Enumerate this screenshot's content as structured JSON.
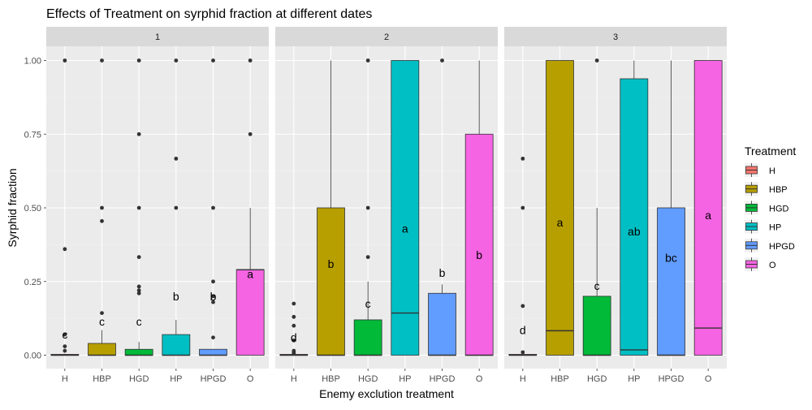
{
  "chart_data": {
    "type": "boxplot",
    "title": "Effects of Treatment on syrphid fraction at different dates",
    "xlabel": "Enemy exclution treatment",
    "ylabel": "Syrphid fraction",
    "ylim": [
      0,
      1
    ],
    "yticks": [
      "0.00",
      "0.25",
      "0.50",
      "0.75",
      "1.00"
    ],
    "categories": [
      "H",
      "HBP",
      "HGD",
      "HP",
      "HPGD",
      "O"
    ],
    "legend": {
      "title": "Treatment",
      "position": "right",
      "entries": [
        {
          "label": "H",
          "color": "#F8766D"
        },
        {
          "label": "HBP",
          "color": "#B79F00"
        },
        {
          "label": "HGD",
          "color": "#00BA38"
        },
        {
          "label": "HP",
          "color": "#00BFC4"
        },
        {
          "label": "HPGD",
          "color": "#619CFF"
        },
        {
          "label": "O",
          "color": "#F564E3"
        }
      ]
    },
    "panels": [
      {
        "strip": "1",
        "boxes": [
          {
            "cat": "H",
            "q1": 0,
            "median": 0,
            "q3": 0.003,
            "wlo": 0,
            "whi": 0.005,
            "outliers": [
              1.0,
              0.36,
              0.07,
              0.03,
              0.015
            ],
            "letter": "c",
            "letter_y": 0.07
          },
          {
            "cat": "HBP",
            "q1": 0,
            "median": 0,
            "q3": 0.04,
            "wlo": 0,
            "whi": 0.085,
            "outliers": [
              1.0,
              0.5,
              0.455,
              0.143
            ],
            "letter": "c",
            "letter_y": 0.115
          },
          {
            "cat": "HGD",
            "q1": 0,
            "median": 0,
            "q3": 0.02,
            "wlo": 0,
            "whi": 0.045,
            "outliers": [
              1.0,
              0.75,
              0.5,
              0.333,
              0.233,
              0.22,
              0.21
            ],
            "letter": "c",
            "letter_y": 0.115
          },
          {
            "cat": "HP",
            "q1": 0,
            "median": 0,
            "q3": 0.07,
            "wlo": 0,
            "whi": 0.12,
            "outliers": [
              1.0,
              0.667,
              0.5
            ],
            "letter": "b",
            "letter_y": 0.2
          },
          {
            "cat": "HPGD",
            "q1": 0,
            "median": 0,
            "q3": 0.02,
            "wlo": 0,
            "whi": 0.02,
            "outliers": [
              1.0,
              0.5,
              0.25,
              0.2,
              0.18,
              0.06
            ],
            "letter": "b",
            "letter_y": 0.2
          },
          {
            "cat": "O",
            "q1": 0,
            "median": 0.29,
            "q3": 0.29,
            "wlo": 0,
            "whi": 0.5,
            "outliers": [
              1.0,
              0.75
            ],
            "letter": "a",
            "letter_y": 0.275
          }
        ]
      },
      {
        "strip": "2",
        "boxes": [
          {
            "cat": "H",
            "q1": 0,
            "median": 0,
            "q3": 0.003,
            "wlo": 0,
            "whi": 0.005,
            "outliers": [
              0.175,
              0.13,
              0.1,
              0.05,
              0.015,
              0.01,
              0.005
            ],
            "letter": "d",
            "letter_y": 0.06
          },
          {
            "cat": "HBP",
            "q1": 0,
            "median": 0,
            "q3": 0.5,
            "wlo": 0,
            "whi": 1.0,
            "outliers": [],
            "letter": "b",
            "letter_y": 0.31
          },
          {
            "cat": "HGD",
            "q1": 0,
            "median": 0,
            "q3": 0.12,
            "wlo": 0,
            "whi": 0.25,
            "outliers": [
              1.0,
              0.5,
              0.333
            ],
            "letter": "c",
            "letter_y": 0.175
          },
          {
            "cat": "HP",
            "q1": 0,
            "median": 0.143,
            "q3": 1.0,
            "wlo": 0,
            "whi": 1.0,
            "outliers": [],
            "letter": "a",
            "letter_y": 0.43
          },
          {
            "cat": "HPGD",
            "q1": 0,
            "median": 0,
            "q3": 0.21,
            "wlo": 0,
            "whi": 0.24,
            "outliers": [
              1.0
            ],
            "letter": "b",
            "letter_y": 0.28
          },
          {
            "cat": "O",
            "q1": 0,
            "median": 0,
            "q3": 0.75,
            "wlo": 0,
            "whi": 1.0,
            "outliers": [],
            "letter": "b",
            "letter_y": 0.34
          }
        ]
      },
      {
        "strip": "3",
        "boxes": [
          {
            "cat": "H",
            "q1": 0,
            "median": 0,
            "q3": 0.003,
            "wlo": 0,
            "whi": 0.005,
            "outliers": [
              0.667,
              0.5,
              0.167,
              0.01
            ],
            "letter": "d",
            "letter_y": 0.085
          },
          {
            "cat": "HBP",
            "q1": 0,
            "median": 0.083,
            "q3": 1.0,
            "wlo": 0,
            "whi": 1.0,
            "outliers": [],
            "letter": "a",
            "letter_y": 0.45
          },
          {
            "cat": "HGD",
            "q1": 0,
            "median": 0,
            "q3": 0.2,
            "wlo": 0,
            "whi": 0.5,
            "outliers": [
              1.0
            ],
            "letter": "c",
            "letter_y": 0.235
          },
          {
            "cat": "HP",
            "q1": 0,
            "median": 0.018,
            "q3": 0.938,
            "wlo": 0,
            "whi": 1.0,
            "outliers": [],
            "letter": "ab",
            "letter_y": 0.42
          },
          {
            "cat": "HPGD",
            "q1": 0,
            "median": 0,
            "q3": 0.5,
            "wlo": 0,
            "whi": 1.0,
            "outliers": [],
            "letter": "bc",
            "letter_y": 0.33
          },
          {
            "cat": "O",
            "q1": 0,
            "median": 0.092,
            "q3": 1.0,
            "wlo": 0,
            "whi": 1.0,
            "outliers": [],
            "letter": "a",
            "letter_y": 0.475
          }
        ]
      }
    ]
  }
}
